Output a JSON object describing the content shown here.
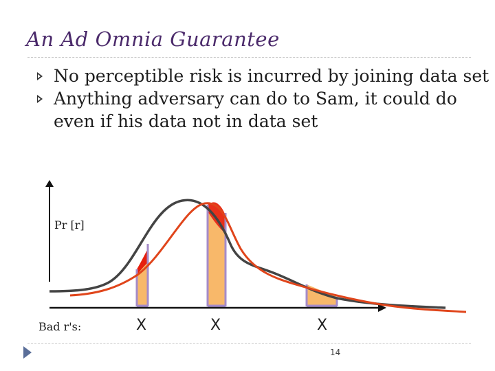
{
  "slide": {
    "title": "An Ad Omnia Guarantee",
    "bullets": [
      "No perceptible risk is incurred by joining data set",
      "Anything adversary can do to Sam, it could do even if his data not in data set"
    ],
    "page_number": "14"
  },
  "figure": {
    "y_label": "Pr [r]",
    "x_row_label": "Bad r's:",
    "x_marks": [
      "X",
      "X",
      "X"
    ],
    "curves": [
      {
        "color": "#444444"
      },
      {
        "color": "#e0451b"
      }
    ],
    "bar_fill": "#f8b86a",
    "bar_outline": "#a58bc9",
    "gap_fill": "#e61e0e"
  },
  "colors": {
    "title": "#4b2a6b",
    "nav_arrow": "#5a6e99"
  }
}
